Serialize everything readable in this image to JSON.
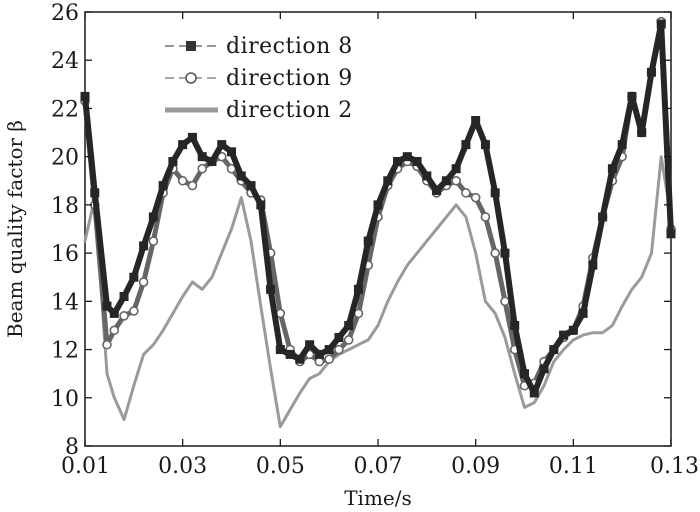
{
  "chart_data": {
    "type": "line",
    "title": "",
    "xlabel": "Time/s",
    "ylabel": "Beam quality factor β",
    "xlim": [
      0.01,
      0.13
    ],
    "ylim": [
      8,
      26
    ],
    "xticks": [
      "0.01",
      "0.03",
      "0.05",
      "0.07",
      "0.09",
      "0.11",
      "0.13"
    ],
    "yticks": [
      "8",
      "10",
      "12",
      "14",
      "16",
      "18",
      "20",
      "22",
      "24",
      "26"
    ],
    "grid": false,
    "legend_position": "top-left",
    "series": [
      {
        "name": "direction 8",
        "color": "#262626",
        "marker": "square",
        "x": [
          0.01,
          0.012,
          0.0145,
          0.016,
          0.018,
          0.02,
          0.022,
          0.024,
          0.026,
          0.028,
          0.03,
          0.032,
          0.034,
          0.036,
          0.038,
          0.04,
          0.042,
          0.044,
          0.046,
          0.048,
          0.05,
          0.052,
          0.054,
          0.056,
          0.058,
          0.06,
          0.062,
          0.064,
          0.066,
          0.068,
          0.07,
          0.072,
          0.074,
          0.076,
          0.078,
          0.08,
          0.082,
          0.084,
          0.086,
          0.088,
          0.09,
          0.092,
          0.094,
          0.096,
          0.098,
          0.1,
          0.102,
          0.104,
          0.106,
          0.108,
          0.11,
          0.112,
          0.114,
          0.116,
          0.118,
          0.12,
          0.122,
          0.124,
          0.126,
          0.128,
          0.13
        ],
        "y": [
          22.5,
          18.5,
          13.8,
          13.5,
          14.2,
          15.0,
          16.3,
          17.5,
          18.8,
          19.8,
          20.5,
          20.8,
          20.0,
          19.8,
          20.5,
          20.2,
          19.2,
          18.8,
          18.0,
          14.5,
          12.0,
          11.8,
          11.6,
          12.2,
          11.8,
          12.0,
          12.5,
          13.0,
          14.5,
          16.5,
          18.0,
          19.0,
          19.8,
          20.0,
          19.8,
          19.2,
          18.6,
          19.0,
          19.5,
          20.5,
          21.5,
          20.5,
          18.5,
          16.0,
          13.0,
          11.0,
          10.2,
          11.2,
          12.0,
          12.6,
          12.8,
          13.5,
          15.5,
          17.5,
          19.5,
          20.5,
          22.5,
          21.0,
          23.5,
          25.5,
          16.8
        ]
      },
      {
        "name": "direction 9",
        "color": "#666666",
        "marker": "circle",
        "x": [
          0.01,
          0.012,
          0.0145,
          0.016,
          0.018,
          0.02,
          0.022,
          0.024,
          0.026,
          0.028,
          0.03,
          0.032,
          0.034,
          0.036,
          0.038,
          0.04,
          0.042,
          0.044,
          0.046,
          0.048,
          0.05,
          0.052,
          0.054,
          0.056,
          0.058,
          0.06,
          0.062,
          0.064,
          0.066,
          0.068,
          0.07,
          0.072,
          0.074,
          0.076,
          0.078,
          0.08,
          0.082,
          0.084,
          0.086,
          0.088,
          0.09,
          0.092,
          0.094,
          0.096,
          0.098,
          0.1,
          0.102,
          0.104,
          0.106,
          0.108,
          0.11,
          0.112,
          0.114,
          0.116,
          0.118,
          0.12,
          0.122,
          0.124,
          0.126,
          0.128,
          0.13
        ],
        "y": [
          22.3,
          18.0,
          12.2,
          12.8,
          13.4,
          13.6,
          14.8,
          16.5,
          18.5,
          19.5,
          19.0,
          18.8,
          19.5,
          19.8,
          20.0,
          19.5,
          19.0,
          18.5,
          18.2,
          16.0,
          13.5,
          12.0,
          11.5,
          11.8,
          11.5,
          11.6,
          12.0,
          12.4,
          13.5,
          15.5,
          17.5,
          18.8,
          19.5,
          19.8,
          19.6,
          19.0,
          18.5,
          18.8,
          19.0,
          18.5,
          18.3,
          17.5,
          16.0,
          14.0,
          12.0,
          10.5,
          10.6,
          11.5,
          12.0,
          12.5,
          12.8,
          13.8,
          15.8,
          17.5,
          19.0,
          20.0,
          22.5,
          21.0,
          23.5,
          25.6,
          17.0
        ]
      },
      {
        "name": "direction 2",
        "color": "#9a9a9a",
        "marker": "none",
        "x": [
          0.01,
          0.012,
          0.0145,
          0.016,
          0.018,
          0.02,
          0.022,
          0.024,
          0.026,
          0.028,
          0.03,
          0.032,
          0.034,
          0.036,
          0.038,
          0.04,
          0.042,
          0.044,
          0.046,
          0.048,
          0.05,
          0.052,
          0.054,
          0.056,
          0.058,
          0.06,
          0.062,
          0.064,
          0.066,
          0.068,
          0.07,
          0.072,
          0.074,
          0.076,
          0.078,
          0.08,
          0.082,
          0.084,
          0.086,
          0.088,
          0.09,
          0.092,
          0.094,
          0.096,
          0.098,
          0.1,
          0.102,
          0.104,
          0.106,
          0.108,
          0.11,
          0.112,
          0.114,
          0.116,
          0.118,
          0.12,
          0.122,
          0.124,
          0.126,
          0.128,
          0.13
        ],
        "y": [
          16.5,
          18.3,
          11.0,
          10.0,
          9.1,
          10.5,
          11.8,
          12.2,
          12.8,
          13.5,
          14.2,
          14.8,
          14.5,
          15.0,
          16.0,
          17.0,
          18.3,
          16.5,
          13.8,
          11.2,
          8.8,
          9.5,
          10.2,
          10.8,
          11.0,
          11.5,
          11.8,
          12.0,
          12.2,
          12.4,
          13.0,
          14.0,
          14.8,
          15.5,
          16.0,
          16.5,
          17.0,
          17.5,
          18.0,
          17.5,
          16.0,
          14.0,
          13.5,
          12.5,
          11.0,
          9.6,
          9.8,
          10.5,
          11.5,
          12.0,
          12.4,
          12.6,
          12.7,
          12.7,
          13.0,
          13.8,
          14.5,
          15.0,
          16.0,
          20.0,
          17.5
        ]
      }
    ]
  }
}
